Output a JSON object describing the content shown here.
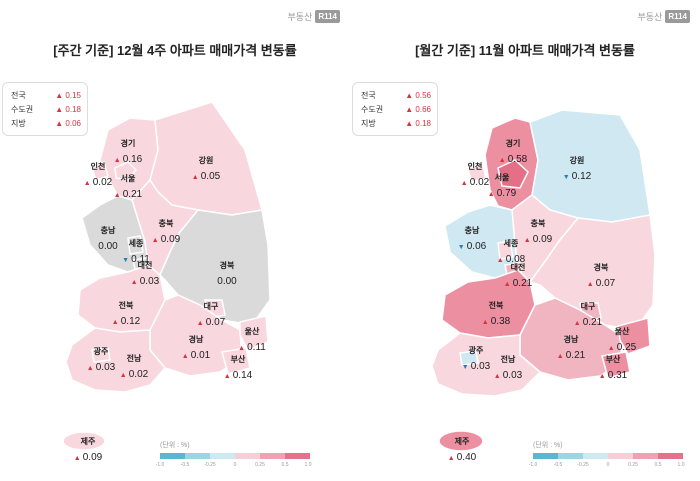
{
  "brand": {
    "text": "부동산",
    "logo": "R114"
  },
  "colors": {
    "up": "#d63440",
    "down": "#2a7fb8",
    "neutral": "#d9d9d9"
  },
  "left": {
    "title": "[주간 기준] 12월 4주 아파트 매매가격 변동률",
    "summary": [
      {
        "label": "전국",
        "value": "0.15",
        "dir": "up"
      },
      {
        "label": "수도권",
        "value": "0.18",
        "dir": "up"
      },
      {
        "label": "지방",
        "value": "0.06",
        "dir": "up"
      }
    ],
    "regions": [
      {
        "name": "경기",
        "value": "0.16",
        "dir": "up"
      },
      {
        "name": "강원",
        "value": "0.05",
        "dir": "up"
      },
      {
        "name": "인천",
        "value": "0.02",
        "dir": "up"
      },
      {
        "name": "서울",
        "value": "0.21",
        "dir": "up"
      },
      {
        "name": "충북",
        "value": "0.09",
        "dir": "up"
      },
      {
        "name": "충남",
        "value": "0.00",
        "dir": "flat"
      },
      {
        "name": "세종",
        "value": "0.11",
        "dir": "down"
      },
      {
        "name": "대전",
        "value": "0.03",
        "dir": "up"
      },
      {
        "name": "경북",
        "value": "0.00",
        "dir": "flat"
      },
      {
        "name": "전북",
        "value": "0.12",
        "dir": "up"
      },
      {
        "name": "대구",
        "value": "0.07",
        "dir": "up"
      },
      {
        "name": "울산",
        "value": "0.11",
        "dir": "up"
      },
      {
        "name": "경남",
        "value": "0.01",
        "dir": "up"
      },
      {
        "name": "광주",
        "value": "0.03",
        "dir": "up"
      },
      {
        "name": "전남",
        "value": "0.02",
        "dir": "up"
      },
      {
        "name": "부산",
        "value": "0.14",
        "dir": "up"
      },
      {
        "name": "제주",
        "value": "0.09",
        "dir": "up"
      }
    ]
  },
  "right": {
    "title": "[월간 기준] 11월 아파트 매매가격 변동률",
    "summary": [
      {
        "label": "전국",
        "value": "0.56",
        "dir": "up"
      },
      {
        "label": "수도권",
        "value": "0.66",
        "dir": "up"
      },
      {
        "label": "지방",
        "value": "0.18",
        "dir": "up"
      }
    ],
    "regions": [
      {
        "name": "경기",
        "value": "0.58",
        "dir": "up"
      },
      {
        "name": "강원",
        "value": "0.12",
        "dir": "down"
      },
      {
        "name": "인천",
        "value": "0.02",
        "dir": "up"
      },
      {
        "name": "서울",
        "value": "0.79",
        "dir": "up"
      },
      {
        "name": "충북",
        "value": "0.09",
        "dir": "up"
      },
      {
        "name": "충남",
        "value": "0.06",
        "dir": "down"
      },
      {
        "name": "세종",
        "value": "0.08",
        "dir": "up"
      },
      {
        "name": "대전",
        "value": "0.21",
        "dir": "up"
      },
      {
        "name": "경북",
        "value": "0.07",
        "dir": "up"
      },
      {
        "name": "전북",
        "value": "0.38",
        "dir": "up"
      },
      {
        "name": "대구",
        "value": "0.21",
        "dir": "up"
      },
      {
        "name": "울산",
        "value": "0.25",
        "dir": "up"
      },
      {
        "name": "경남",
        "value": "0.21",
        "dir": "up"
      },
      {
        "name": "광주",
        "value": "0.03",
        "dir": "down"
      },
      {
        "name": "전남",
        "value": "0.03",
        "dir": "up"
      },
      {
        "name": "부산",
        "value": "0.31",
        "dir": "up"
      },
      {
        "name": "제주",
        "value": "0.40",
        "dir": "up"
      }
    ]
  },
  "legend": {
    "unit": "(단위 : %)",
    "ticks": [
      "-1.0",
      "-0.5",
      "-0.25",
      "0",
      "0.25",
      "0.5",
      "1.0"
    ],
    "colors": [
      "#5bb7d0",
      "#9fd4e3",
      "#cde9f1",
      "#f6cfd6",
      "#efa2b1",
      "#e3728a"
    ]
  }
}
